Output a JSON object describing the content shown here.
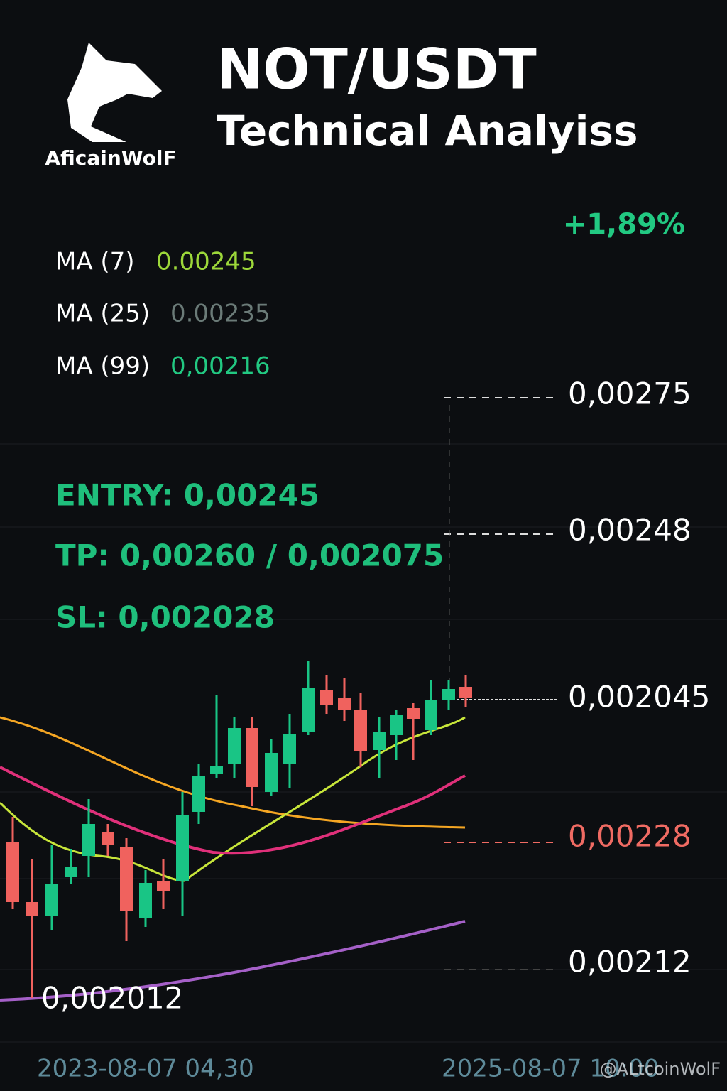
{
  "header": {
    "brand": "AficainWolF",
    "title": "NOT/USDT",
    "subtitle": "Technical Analyiss"
  },
  "change": "+1,89%",
  "moving_averages": [
    {
      "label": "MA (7)",
      "value": "0.00245"
    },
    {
      "label": "MA (25)",
      "value": "0.00235"
    },
    {
      "label": "MA (99)",
      "value": "0,00216"
    }
  ],
  "trade": {
    "entry": "ENTRY: 0,00245",
    "tp": "TP: 0,00260 / 0,002075",
    "sl": "SL: 0,002028"
  },
  "price_levels": [
    "0,00275",
    "0,00248",
    "0,002045",
    "0,00228",
    "0,00212"
  ],
  "low_label": "0,002012",
  "dates": [
    "2023-08-07 04,30",
    "2025-08-07 10:00"
  ],
  "watermark": "@ALtcoinWolF"
}
